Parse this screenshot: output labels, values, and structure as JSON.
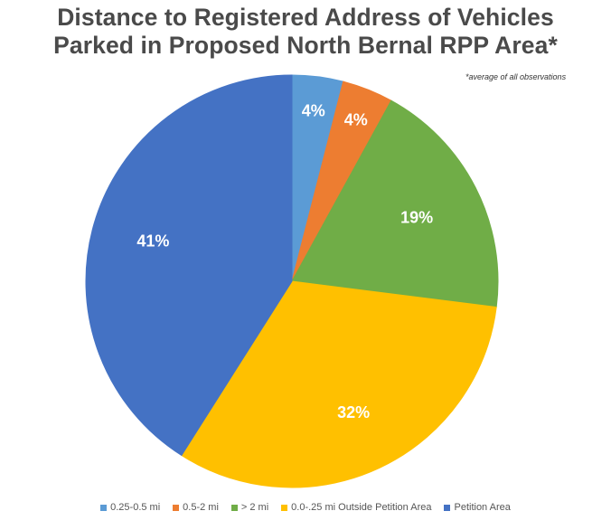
{
  "chart_data": {
    "type": "pie",
    "title": "Distance to Registered Address of Vehicles Parked in Proposed North Bernal RPP Area*",
    "title_lines": [
      "Distance to Registered Address of Vehicles",
      "Parked in Proposed North Bernal RPP Area*"
    ],
    "footnote": "*average of all observations",
    "slices": [
      {
        "name": "0.25-0.5 mi",
        "value": 4,
        "label": "4%",
        "color": "#5b9bd5"
      },
      {
        "name": "0.5-2 mi",
        "value": 4,
        "label": "4%",
        "color": "#ed7d31"
      },
      {
        "name": "> 2 mi",
        "value": 19,
        "label": "19%",
        "color": "#70ad47"
      },
      {
        "name": "0.0-.25 mi Outside Petition Area",
        "value": 32,
        "label": "32%",
        "color": "#ffc000"
      },
      {
        "name": "Petition Area",
        "value": 41,
        "label": "41%",
        "color": "#4472c4"
      }
    ],
    "start_angle": "12 o'clock",
    "direction": "clockwise",
    "legend_position": "bottom"
  }
}
